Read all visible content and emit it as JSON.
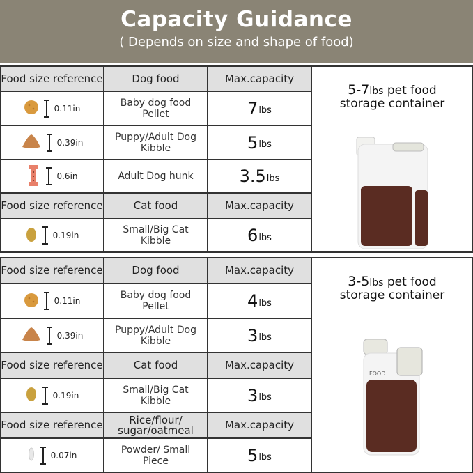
{
  "title": "Capacity Guidance",
  "subtitle": "( Depends on size and shape of food)",
  "tables": [
    {
      "container": {
        "range": "5-7",
        "unit": "lbs",
        "label": "pet food",
        "label2": "storage container"
      },
      "rows": [
        {
          "type": "header",
          "ref": "Food size reference",
          "food": "Dog food",
          "cap": "Max.capacity"
        },
        {
          "type": "item",
          "icon": "round-pellet-icon",
          "size": "0.11in",
          "food": "Baby dog food Pellet",
          "value": "7",
          "unit": "lbs"
        },
        {
          "type": "item",
          "icon": "triangle-kibble-icon",
          "size": "0.39in",
          "food": "Puppy/Adult Dog Kibble",
          "value": "5",
          "unit": "lbs"
        },
        {
          "type": "item",
          "icon": "bone-biscuit-icon",
          "size": "0.6in",
          "food": "Adult Dog hunk",
          "value": "3.5",
          "unit": "lbs"
        },
        {
          "type": "header",
          "ref": "Food size reference",
          "food": "Cat food",
          "cap": "Max.capacity"
        },
        {
          "type": "item",
          "icon": "oval-kibble-icon",
          "size": "0.19in",
          "food": "Small/Big Cat Kibble",
          "value": "6",
          "unit": "lbs"
        }
      ]
    },
    {
      "container": {
        "range": "3-5",
        "unit": "lbs",
        "label": "pet food",
        "label2": "storage container",
        "print": "FOOD"
      },
      "rows": [
        {
          "type": "header",
          "ref": "Food size reference",
          "food": "Dog food",
          "cap": "Max.capacity"
        },
        {
          "type": "item",
          "icon": "round-pellet-icon",
          "size": "0.11in",
          "food": "Baby dog food Pellet",
          "value": "4",
          "unit": "lbs"
        },
        {
          "type": "item",
          "icon": "triangle-kibble-icon",
          "size": "0.39in",
          "food": "Puppy/Adult Dog Kibble",
          "value": "3",
          "unit": "lbs"
        },
        {
          "type": "header",
          "ref": "Food size reference",
          "food": "Cat food",
          "cap": "Max.capacity"
        },
        {
          "type": "item",
          "icon": "oval-kibble-icon",
          "size": "0.19in",
          "food": "Small/Big Cat Kibble",
          "value": "3",
          "unit": "lbs"
        },
        {
          "type": "header",
          "ref": "Food size reference",
          "food": "Rice/flour/ sugar/oatmeal",
          "cap": "Max.capacity"
        },
        {
          "type": "item",
          "icon": "rice-grain-icon",
          "size": "0.07in",
          "food": "Powder/ Small Piece",
          "value": "5",
          "unit": "lbs"
        }
      ]
    }
  ],
  "colors": {
    "banner": "#8a8475",
    "header_cell": "#e0e0e0",
    "kibble": "#c98a3c",
    "biscuit": "#e8826c",
    "food_in_jar": "#5a2c22"
  }
}
